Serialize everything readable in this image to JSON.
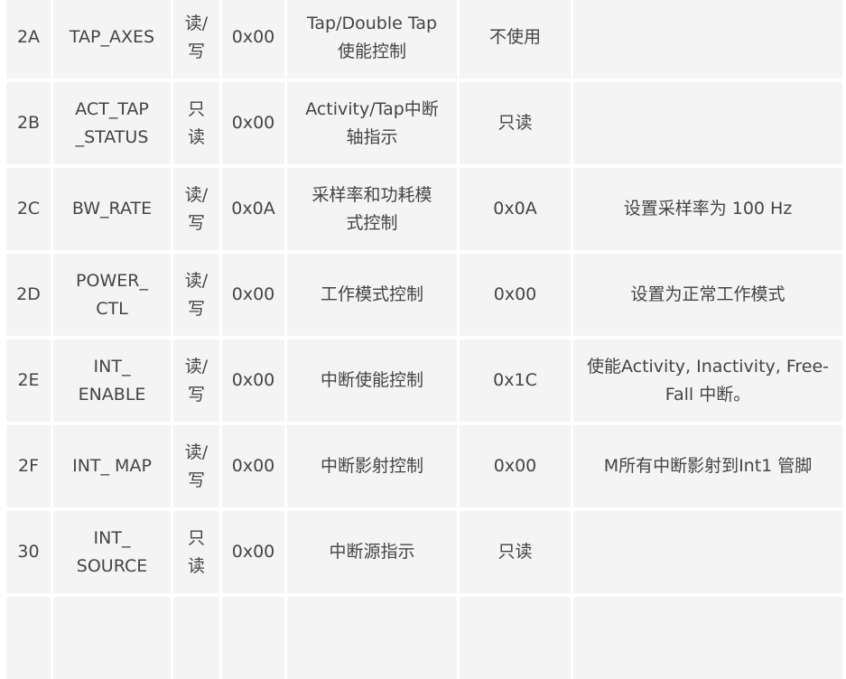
{
  "rows": [
    [
      "2A",
      "TAP_AXES",
      "读/\n写",
      "0x00",
      "Tap/Double Tap\n使能控制",
      "不使用",
      ""
    ],
    [
      "2B",
      "ACT_TAP\n_STATUS",
      "只\n读",
      "0x00",
      "Activity/Tap中断\n轴指示",
      "只读",
      ""
    ],
    [
      "2C",
      "BW_RATE",
      "读/\n写",
      "0x0A",
      "采样率和功耗模\n式控制",
      "0x0A",
      "设置采样率为 100 Hz"
    ],
    [
      "2D",
      "POWER_\nCTL",
      "读/\n写",
      "0x00",
      "工作模式控制",
      "0x00",
      "设置为正常工作模式"
    ],
    [
      "2E",
      "INT_\nENABLE",
      "读/\n写",
      "0x00",
      "中断使能控制",
      "0x1C",
      "使能Activity, Inactivity, Free-\nFall 中断。"
    ],
    [
      "2F",
      "INT_ MAP",
      "读/\n写",
      "0x00",
      "中断影射控制",
      "0x00",
      "M所有中断影射到Int1 管脚"
    ],
    [
      "30",
      "INT_\nSOURCE",
      "只\n读",
      "0x00",
      "中断源指示",
      "只读",
      ""
    ],
    [
      "",
      "",
      "",
      "",
      "",
      "",
      ""
    ]
  ]
}
